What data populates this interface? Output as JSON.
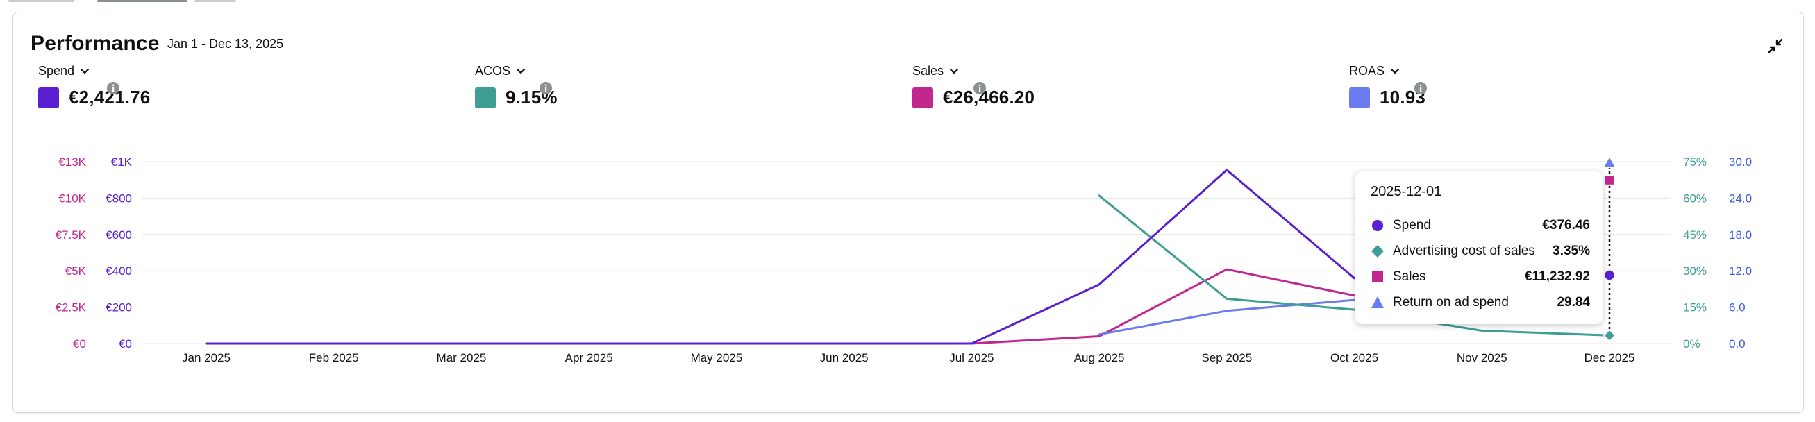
{
  "header": {
    "title": "Performance",
    "date_range": "Jan 1 - Dec 13, 2025"
  },
  "metrics": [
    {
      "label": "Spend",
      "value": "€2,421.76",
      "color": "#5a1fd1"
    },
    {
      "label": "ACOS",
      "value": "9.15%",
      "color": "#3f9e94"
    },
    {
      "label": "Sales",
      "value": "€26,466.20",
      "color": "#c2268f"
    },
    {
      "label": "ROAS",
      "value": "10.93",
      "color": "#6b7cf0"
    }
  ],
  "icons": {
    "collapse": "collapse-arrows-icon",
    "info": "info-icon",
    "chevron": "chevron-down-icon"
  },
  "tooltip": {
    "date": "2025-12-01",
    "rows": [
      {
        "label": "Spend",
        "value": "€376.46",
        "marker": "circle",
        "color": "#5a1fd1"
      },
      {
        "label": "Advertising cost of sales",
        "value": "3.35%",
        "marker": "diamond",
        "color": "#3f9e94"
      },
      {
        "label": "Sales",
        "value": "€11,232.92",
        "marker": "square",
        "color": "#c2268f"
      },
      {
        "label": "Return on ad spend",
        "value": "29.84",
        "marker": "triangle",
        "color": "#6b7cf0"
      }
    ]
  },
  "chart_data": {
    "type": "line",
    "categories": [
      "Jan 2025",
      "Feb 2025",
      "Mar 2025",
      "Apr 2025",
      "May 2025",
      "Jun 2025",
      "Jul 2025",
      "Aug 2025",
      "Sep 2025",
      "Oct 2025",
      "Nov 2025",
      "Dec 2025"
    ],
    "axes": {
      "sales": {
        "ticks": [
          "€0",
          "€2.5K",
          "€5K",
          "€7.5K",
          "€10K",
          "€13K"
        ],
        "min": 0,
        "max": 12500,
        "color": "#c2268f",
        "side": "left-outer"
      },
      "spend": {
        "ticks": [
          "€0",
          "€200",
          "€400",
          "€600",
          "€800",
          "€1K"
        ],
        "min": 0,
        "max": 1000,
        "color": "#5a1fd1",
        "side": "left-inner"
      },
      "acos": {
        "ticks": [
          "0%",
          "15%",
          "30%",
          "45%",
          "60%",
          "75%"
        ],
        "min": 0,
        "max": 75,
        "color": "#3f9e94",
        "side": "right-inner"
      },
      "roas": {
        "ticks": [
          "0.0",
          "6.0",
          "12.0",
          "18.0",
          "24.0",
          "30.0"
        ],
        "min": 0,
        "max": 30,
        "color": "#3d5bd9",
        "side": "right-outer"
      }
    },
    "grid": true,
    "highlight_category": "Dec 2025",
    "series": [
      {
        "name": "Spend",
        "axis": "spend",
        "color": "#5a1fd1",
        "marker": "circle",
        "values": [
          0,
          0,
          0,
          0,
          0,
          0,
          0,
          325,
          955,
          360,
          null,
          376.46
        ]
      },
      {
        "name": "Advertising cost of sales",
        "axis": "acos",
        "color": "#3f9e94",
        "marker": "diamond",
        "values": [
          null,
          null,
          null,
          null,
          null,
          null,
          null,
          61,
          18.5,
          14,
          5.3,
          3.35
        ]
      },
      {
        "name": "Sales",
        "axis": "sales",
        "color": "#c2268f",
        "marker": "square",
        "values": [
          0,
          0,
          0,
          0,
          0,
          0,
          0,
          500,
          5100,
          3300,
          null,
          11232.92
        ]
      },
      {
        "name": "Return on ad spend",
        "axis": "roas",
        "color": "#6b7cf0",
        "marker": "triangle",
        "values": [
          null,
          null,
          null,
          null,
          null,
          null,
          null,
          1.5,
          5.4,
          7.2,
          null,
          29.84
        ]
      }
    ]
  }
}
